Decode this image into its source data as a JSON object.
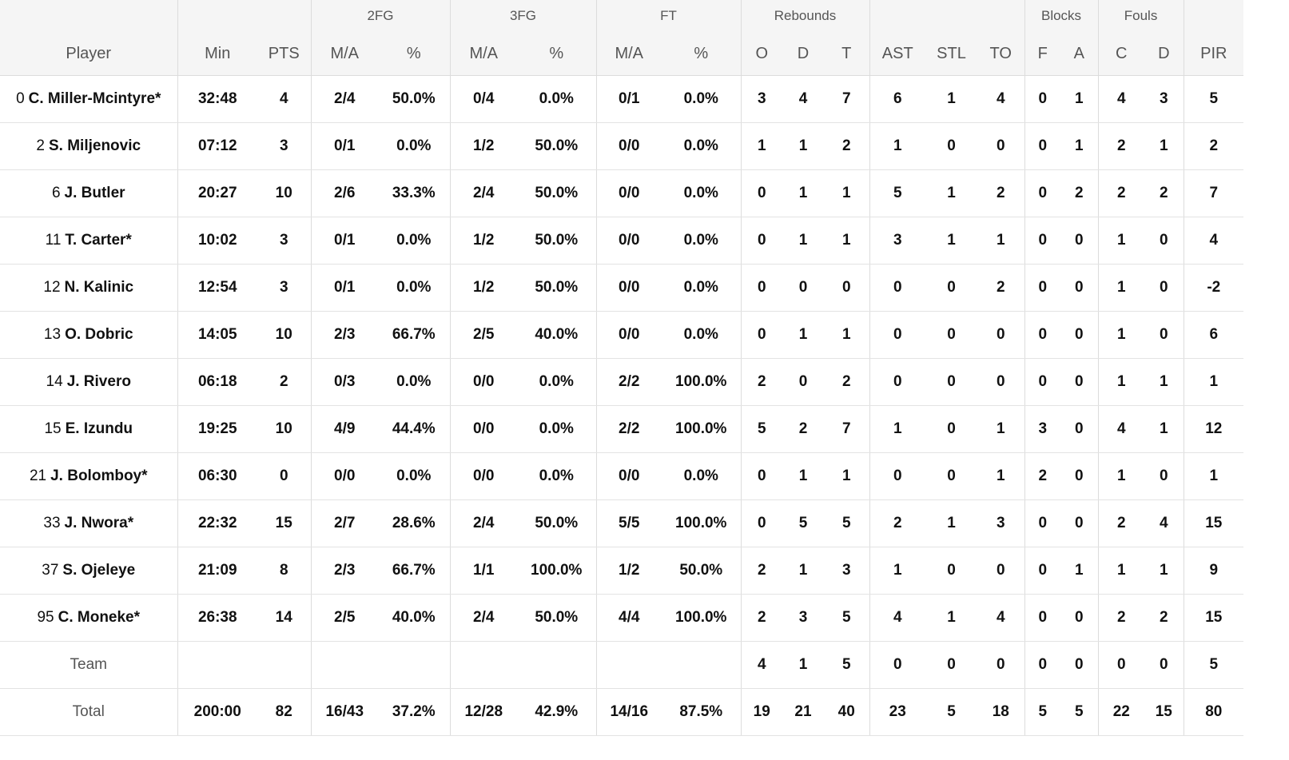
{
  "groups": {
    "fg2": "2FG",
    "fg3": "3FG",
    "ft": "FT",
    "rebounds": "Rebounds",
    "blocks": "Blocks",
    "fouls": "Fouls"
  },
  "columns": {
    "player": "Player",
    "min": "Min",
    "pts": "PTS",
    "fg2_ma": "M/A",
    "fg2_pct": "%",
    "fg3_ma": "M/A",
    "fg3_pct": "%",
    "ft_ma": "M/A",
    "ft_pct": "%",
    "reb_o": "O",
    "reb_d": "D",
    "reb_t": "T",
    "ast": "AST",
    "stl": "STL",
    "to": "TO",
    "blk_f": "F",
    "blk_a": "A",
    "foul_c": "C",
    "foul_d": "D",
    "pir": "PIR"
  },
  "players": [
    {
      "num": "0",
      "name": "C. Miller-Mcintyre*",
      "min": "32:48",
      "pts": "4",
      "fg2_ma": "2/4",
      "fg2_pct": "50.0%",
      "fg3_ma": "0/4",
      "fg3_pct": "0.0%",
      "ft_ma": "0/1",
      "ft_pct": "0.0%",
      "reb_o": "3",
      "reb_d": "4",
      "reb_t": "7",
      "ast": "6",
      "stl": "1",
      "to": "4",
      "blk_f": "0",
      "blk_a": "1",
      "foul_c": "4",
      "foul_d": "3",
      "pir": "5"
    },
    {
      "num": "2",
      "name": "S. Miljenovic",
      "min": "07:12",
      "pts": "3",
      "fg2_ma": "0/1",
      "fg2_pct": "0.0%",
      "fg3_ma": "1/2",
      "fg3_pct": "50.0%",
      "ft_ma": "0/0",
      "ft_pct": "0.0%",
      "reb_o": "1",
      "reb_d": "1",
      "reb_t": "2",
      "ast": "1",
      "stl": "0",
      "to": "0",
      "blk_f": "0",
      "blk_a": "1",
      "foul_c": "2",
      "foul_d": "1",
      "pir": "2"
    },
    {
      "num": "6",
      "name": "J. Butler",
      "min": "20:27",
      "pts": "10",
      "fg2_ma": "2/6",
      "fg2_pct": "33.3%",
      "fg3_ma": "2/4",
      "fg3_pct": "50.0%",
      "ft_ma": "0/0",
      "ft_pct": "0.0%",
      "reb_o": "0",
      "reb_d": "1",
      "reb_t": "1",
      "ast": "5",
      "stl": "1",
      "to": "2",
      "blk_f": "0",
      "blk_a": "2",
      "foul_c": "2",
      "foul_d": "2",
      "pir": "7"
    },
    {
      "num": "11",
      "name": "T. Carter*",
      "min": "10:02",
      "pts": "3",
      "fg2_ma": "0/1",
      "fg2_pct": "0.0%",
      "fg3_ma": "1/2",
      "fg3_pct": "50.0%",
      "ft_ma": "0/0",
      "ft_pct": "0.0%",
      "reb_o": "0",
      "reb_d": "1",
      "reb_t": "1",
      "ast": "3",
      "stl": "1",
      "to": "1",
      "blk_f": "0",
      "blk_a": "0",
      "foul_c": "1",
      "foul_d": "0",
      "pir": "4"
    },
    {
      "num": "12",
      "name": "N. Kalinic",
      "min": "12:54",
      "pts": "3",
      "fg2_ma": "0/1",
      "fg2_pct": "0.0%",
      "fg3_ma": "1/2",
      "fg3_pct": "50.0%",
      "ft_ma": "0/0",
      "ft_pct": "0.0%",
      "reb_o": "0",
      "reb_d": "0",
      "reb_t": "0",
      "ast": "0",
      "stl": "0",
      "to": "2",
      "blk_f": "0",
      "blk_a": "0",
      "foul_c": "1",
      "foul_d": "0",
      "pir": "-2"
    },
    {
      "num": "13",
      "name": "O. Dobric",
      "min": "14:05",
      "pts": "10",
      "fg2_ma": "2/3",
      "fg2_pct": "66.7%",
      "fg3_ma": "2/5",
      "fg3_pct": "40.0%",
      "ft_ma": "0/0",
      "ft_pct": "0.0%",
      "reb_o": "0",
      "reb_d": "1",
      "reb_t": "1",
      "ast": "0",
      "stl": "0",
      "to": "0",
      "blk_f": "0",
      "blk_a": "0",
      "foul_c": "1",
      "foul_d": "0",
      "pir": "6"
    },
    {
      "num": "14",
      "name": "J. Rivero",
      "min": "06:18",
      "pts": "2",
      "fg2_ma": "0/3",
      "fg2_pct": "0.0%",
      "fg3_ma": "0/0",
      "fg3_pct": "0.0%",
      "ft_ma": "2/2",
      "ft_pct": "100.0%",
      "reb_o": "2",
      "reb_d": "0",
      "reb_t": "2",
      "ast": "0",
      "stl": "0",
      "to": "0",
      "blk_f": "0",
      "blk_a": "0",
      "foul_c": "1",
      "foul_d": "1",
      "pir": "1"
    },
    {
      "num": "15",
      "name": "E. Izundu",
      "min": "19:25",
      "pts": "10",
      "fg2_ma": "4/9",
      "fg2_pct": "44.4%",
      "fg3_ma": "0/0",
      "fg3_pct": "0.0%",
      "ft_ma": "2/2",
      "ft_pct": "100.0%",
      "reb_o": "5",
      "reb_d": "2",
      "reb_t": "7",
      "ast": "1",
      "stl": "0",
      "to": "1",
      "blk_f": "3",
      "blk_a": "0",
      "foul_c": "4",
      "foul_d": "1",
      "pir": "12"
    },
    {
      "num": "21",
      "name": "J. Bolomboy*",
      "min": "06:30",
      "pts": "0",
      "fg2_ma": "0/0",
      "fg2_pct": "0.0%",
      "fg3_ma": "0/0",
      "fg3_pct": "0.0%",
      "ft_ma": "0/0",
      "ft_pct": "0.0%",
      "reb_o": "0",
      "reb_d": "1",
      "reb_t": "1",
      "ast": "0",
      "stl": "0",
      "to": "1",
      "blk_f": "2",
      "blk_a": "0",
      "foul_c": "1",
      "foul_d": "0",
      "pir": "1"
    },
    {
      "num": "33",
      "name": "J. Nwora*",
      "min": "22:32",
      "pts": "15",
      "fg2_ma": "2/7",
      "fg2_pct": "28.6%",
      "fg3_ma": "2/4",
      "fg3_pct": "50.0%",
      "ft_ma": "5/5",
      "ft_pct": "100.0%",
      "reb_o": "0",
      "reb_d": "5",
      "reb_t": "5",
      "ast": "2",
      "stl": "1",
      "to": "3",
      "blk_f": "0",
      "blk_a": "0",
      "foul_c": "2",
      "foul_d": "4",
      "pir": "15"
    },
    {
      "num": "37",
      "name": "S. Ojeleye",
      "min": "21:09",
      "pts": "8",
      "fg2_ma": "2/3",
      "fg2_pct": "66.7%",
      "fg3_ma": "1/1",
      "fg3_pct": "100.0%",
      "ft_ma": "1/2",
      "ft_pct": "50.0%",
      "reb_o": "2",
      "reb_d": "1",
      "reb_t": "3",
      "ast": "1",
      "stl": "0",
      "to": "0",
      "blk_f": "0",
      "blk_a": "1",
      "foul_c": "1",
      "foul_d": "1",
      "pir": "9"
    },
    {
      "num": "95",
      "name": "C. Moneke*",
      "min": "26:38",
      "pts": "14",
      "fg2_ma": "2/5",
      "fg2_pct": "40.0%",
      "fg3_ma": "2/4",
      "fg3_pct": "50.0%",
      "ft_ma": "4/4",
      "ft_pct": "100.0%",
      "reb_o": "2",
      "reb_d": "3",
      "reb_t": "5",
      "ast": "4",
      "stl": "1",
      "to": "4",
      "blk_f": "0",
      "blk_a": "0",
      "foul_c": "2",
      "foul_d": "2",
      "pir": "15"
    }
  ],
  "team": {
    "label": "Team",
    "reb_o": "4",
    "reb_d": "1",
    "reb_t": "5",
    "ast": "0",
    "stl": "0",
    "to": "0",
    "blk_f": "0",
    "blk_a": "0",
    "foul_c": "0",
    "foul_d": "0",
    "pir": "5"
  },
  "total": {
    "label": "Total",
    "min": "200:00",
    "pts": "82",
    "fg2_ma": "16/43",
    "fg2_pct": "37.2%",
    "fg3_ma": "12/28",
    "fg3_pct": "42.9%",
    "ft_ma": "14/16",
    "ft_pct": "87.5%",
    "reb_o": "19",
    "reb_d": "21",
    "reb_t": "40",
    "ast": "23",
    "stl": "5",
    "to": "18",
    "blk_f": "5",
    "blk_a": "5",
    "foul_c": "22",
    "foul_d": "15",
    "pir": "80"
  }
}
